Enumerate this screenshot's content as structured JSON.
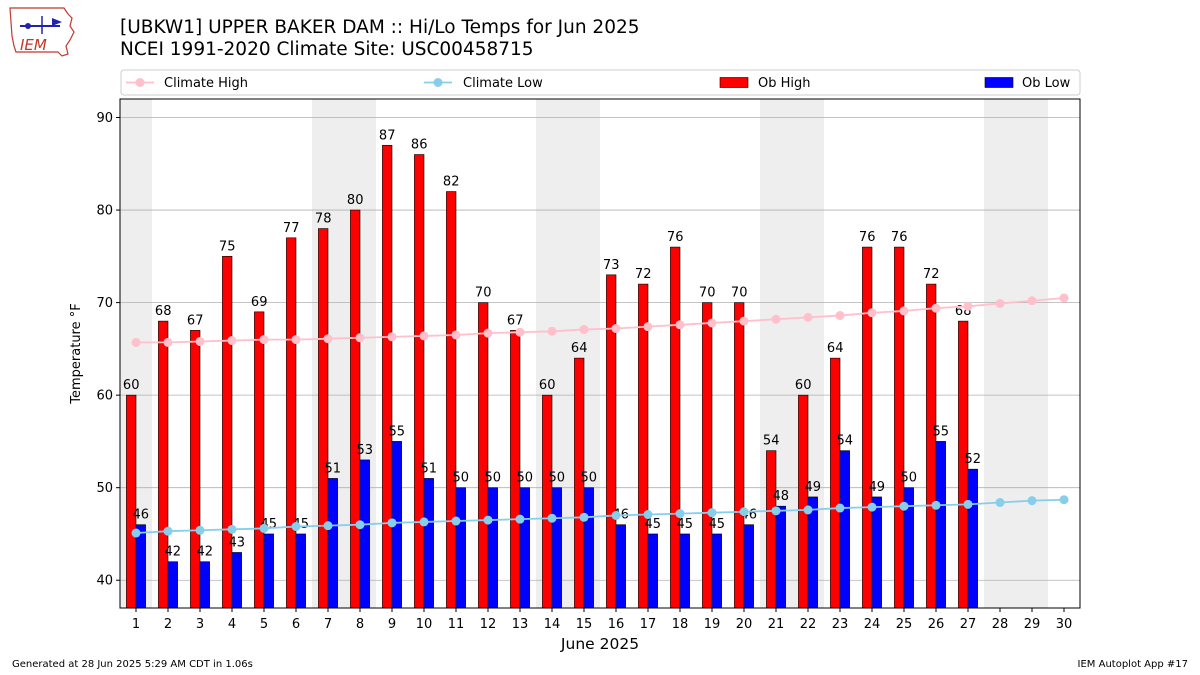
{
  "header": {
    "title_line1": "[UBKW1] UPPER BAKER DAM :: Hi/Lo Temps for Jun 2025",
    "title_line2": "NCEI 1991-2020 Climate Site: USC00458715"
  },
  "logo": {
    "text": "IEM"
  },
  "footer": {
    "left": "Generated at 28 Jun 2025 5:29 AM CDT in 1.06s",
    "right": "IEM Autoplot App #17"
  },
  "colors": {
    "ob_high": "#ff0000",
    "ob_low": "#0000ff",
    "climate_high": "#ffc0cb",
    "climate_low": "#87ceeb",
    "weekend_shade": "#eeeeee",
    "grid": "#b0b0b0"
  },
  "chart_data": {
    "type": "bar",
    "xlabel": "June 2025",
    "ylabel": "Temperature °F",
    "ylim": [
      37,
      92
    ],
    "yticks": [
      40,
      50,
      60,
      70,
      80,
      90
    ],
    "grid": true,
    "legend_position": "top",
    "categories": [
      "1",
      "2",
      "3",
      "4",
      "5",
      "6",
      "7",
      "8",
      "9",
      "10",
      "11",
      "12",
      "13",
      "14",
      "15",
      "16",
      "17",
      "18",
      "19",
      "20",
      "21",
      "22",
      "23",
      "24",
      "25",
      "26",
      "27",
      "28",
      "29",
      "30"
    ],
    "shaded_weekend_days": [
      [
        1,
        1
      ],
      [
        7,
        8
      ],
      [
        14,
        15
      ],
      [
        21,
        22
      ],
      [
        28,
        29
      ]
    ],
    "series": [
      {
        "name": "Climate High",
        "kind": "line",
        "values": [
          65.7,
          65.7,
          65.8,
          65.9,
          66.0,
          66.0,
          66.1,
          66.2,
          66.3,
          66.4,
          66.5,
          66.7,
          66.8,
          66.9,
          67.1,
          67.2,
          67.4,
          67.6,
          67.8,
          68.0,
          68.2,
          68.4,
          68.6,
          68.9,
          69.1,
          69.4,
          69.6,
          69.9,
          70.2,
          70.5
        ]
      },
      {
        "name": "Climate Low",
        "kind": "line",
        "values": [
          45.1,
          45.3,
          45.4,
          45.5,
          45.6,
          45.8,
          45.9,
          46.0,
          46.2,
          46.3,
          46.4,
          46.5,
          46.6,
          46.7,
          46.8,
          47.0,
          47.1,
          47.2,
          47.3,
          47.4,
          47.5,
          47.6,
          47.8,
          47.9,
          48.0,
          48.1,
          48.2,
          48.4,
          48.6,
          48.7
        ]
      },
      {
        "name": "Ob High",
        "kind": "bar",
        "values": [
          60,
          68,
          67,
          75,
          69,
          77,
          78,
          80,
          87,
          86,
          82,
          70,
          67,
          60,
          64,
          73,
          72,
          76,
          70,
          70,
          54,
          60,
          64,
          76,
          76,
          72,
          68,
          null,
          null,
          null
        ]
      },
      {
        "name": "Ob Low",
        "kind": "bar",
        "values": [
          46,
          42,
          42,
          43,
          45,
          45,
          51,
          53,
          55,
          51,
          50,
          50,
          50,
          50,
          50,
          46,
          45,
          45,
          45,
          46,
          48,
          49,
          54,
          49,
          50,
          55,
          52,
          null,
          null,
          null
        ]
      }
    ]
  }
}
